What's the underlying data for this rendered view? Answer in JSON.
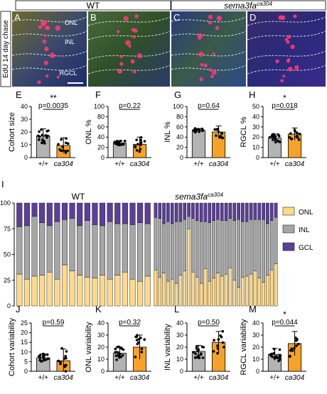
{
  "header": {
    "wt_label": "WT",
    "mut_label_base": "sema3fa",
    "mut_label_sup": "ca304",
    "side_label": "EdU 14 day chase"
  },
  "micrographs": {
    "layer_labels": [
      "ONL",
      "INL",
      "RGCL"
    ],
    "panel_letters": [
      "A",
      "B",
      "C",
      "D"
    ]
  },
  "genotype_labels": [
    "+/+",
    "ca304"
  ],
  "colors": {
    "wt": "#b3b3b3",
    "mut": "#f5a22b",
    "onl": "#fdd98a",
    "inl": "#a6a6a6",
    "gcl": "#5b3f99"
  },
  "panel_I": {
    "letter": "I",
    "wt_title": "WT",
    "mut_title_base": "sema3fa",
    "mut_title_sup": "ca304",
    "legend": [
      "ONL",
      "INL",
      "GCL"
    ],
    "y_ticks": [
      "0",
      "25",
      "50",
      "75",
      "100"
    ]
  },
  "chart_data": [
    {
      "type": "bar",
      "letter": "E",
      "ylabel": "Cohort size",
      "ylim": [
        0,
        40
      ],
      "yticks": [
        "0",
        "10",
        "20",
        "30",
        "40"
      ],
      "categories": [
        "+/+",
        "ca304"
      ],
      "values": [
        17,
        9.5
      ],
      "errors": [
        5.5,
        6
      ],
      "annotation": "**",
      "pvalue": "p=0.0035"
    },
    {
      "type": "bar",
      "letter": "F",
      "ylabel": "ONL %",
      "ylim": [
        0,
        100
      ],
      "yticks": [
        "0",
        "20",
        "40",
        "60",
        "80",
        "100"
      ],
      "categories": [
        "+/+",
        "ca304"
      ],
      "values": [
        29,
        26
      ],
      "errors": [
        4,
        14
      ],
      "annotation": "",
      "pvalue": "p=0.22"
    },
    {
      "type": "bar",
      "letter": "G",
      "ylabel": "INL %",
      "ylim": [
        0,
        100
      ],
      "yticks": [
        "0",
        "20",
        "40",
        "60",
        "80",
        "100"
      ],
      "categories": [
        "+/+",
        "ca304"
      ],
      "values": [
        53,
        50
      ],
      "errors": [
        4,
        12
      ],
      "annotation": "",
      "pvalue": "p=0.64"
    },
    {
      "type": "bar",
      "letter": "H",
      "ylabel": "RGCL %",
      "ylim": [
        0,
        50
      ],
      "yticks": [
        "0",
        "10",
        "20",
        "30",
        "40",
        "50"
      ],
      "categories": [
        "+/+",
        "ca304"
      ],
      "values": [
        19,
        23
      ],
      "errors": [
        4,
        6
      ],
      "annotation": "*",
      "pvalue": "p=0.018"
    },
    {
      "type": "bar",
      "letter": "I",
      "subtype": "stacked-100",
      "groups": [
        {
          "onl": [
            31,
            26,
            29,
            30,
            33,
            26,
            40,
            34,
            30,
            28,
            27,
            30,
            26,
            30,
            33,
            26,
            24,
            29
          ],
          "inl": [
            46,
            52,
            58,
            51,
            45,
            56,
            44,
            51,
            48,
            55,
            52,
            48,
            56,
            50,
            47,
            53,
            57,
            51
          ]
        },
        {
          "onl": [
            35,
            28,
            32,
            24,
            26,
            22,
            30,
            34,
            75,
            33,
            28,
            22,
            36,
            24,
            27,
            32,
            29,
            31,
            37,
            25,
            18,
            28,
            29,
            31,
            34,
            27,
            23,
            30,
            35,
            41
          ],
          "inl": [
            51,
            57,
            48,
            58,
            54,
            60,
            52,
            50,
            12,
            52,
            55,
            60,
            46,
            57,
            56,
            52,
            54,
            52,
            48,
            58,
            66,
            54,
            53,
            53,
            50,
            57,
            61,
            50,
            48,
            45
          ]
        }
      ]
    },
    {
      "type": "bar",
      "letter": "J",
      "ylabel": "Cohort variability",
      "ylim": [
        0,
        25
      ],
      "yticks": [
        "0",
        "5",
        "10",
        "15",
        "20",
        "25"
      ],
      "categories": [
        "+/+",
        "ca304"
      ],
      "values": [
        7,
        5.5
      ],
      "errors": [
        2,
        6
      ],
      "annotation": "",
      "pvalue": "p=0.59"
    },
    {
      "type": "bar",
      "letter": "K",
      "ylabel": "ONL variability",
      "ylim": [
        0,
        40
      ],
      "yticks": [
        "0",
        "10",
        "20",
        "30",
        "40"
      ],
      "categories": [
        "+/+",
        "ca304"
      ],
      "values": [
        15,
        20
      ],
      "errors": [
        5,
        10
      ],
      "annotation": "",
      "pvalue": "p=0.32"
    },
    {
      "type": "bar",
      "letter": "L",
      "ylabel": "INL variability",
      "ylim": [
        0,
        40
      ],
      "yticks": [
        "0",
        "10",
        "20",
        "30",
        "40"
      ],
      "categories": [
        "+/+",
        "ca304"
      ],
      "values": [
        16.5,
        24
      ],
      "errors": [
        5,
        9
      ],
      "annotation": "",
      "pvalue": "p=0.50"
    },
    {
      "type": "bar",
      "letter": "M",
      "ylabel": "RGCL variability",
      "ylim": [
        0,
        40
      ],
      "yticks": [
        "0",
        "10",
        "20",
        "30",
        "40"
      ],
      "categories": [
        "+/+",
        "ca304"
      ],
      "values": [
        14,
        23
      ],
      "errors": [
        5,
        10
      ],
      "annotation": "*",
      "pvalue": "p=0.044"
    }
  ]
}
